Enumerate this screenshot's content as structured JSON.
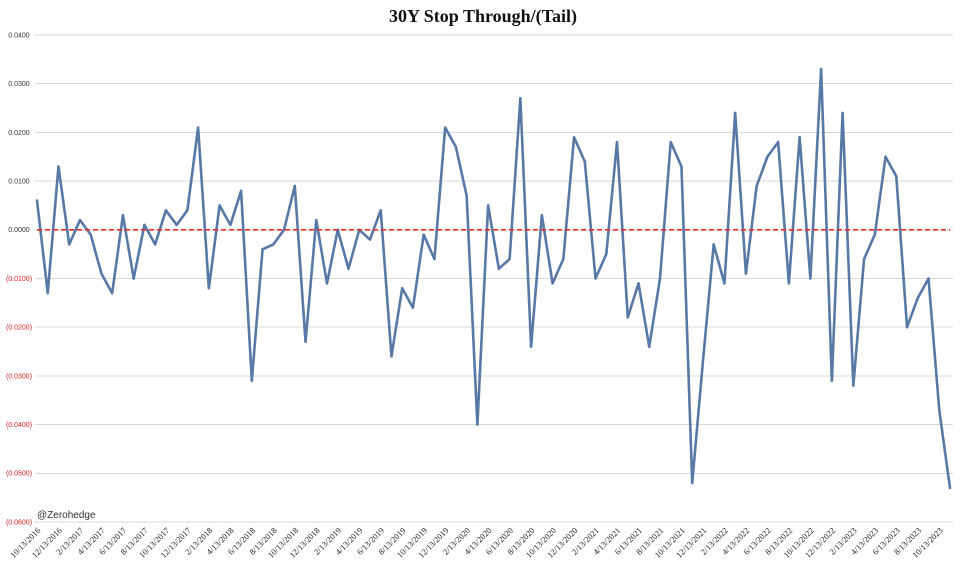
{
  "chart_data": {
    "type": "line",
    "title": "30Y Stop Through/(Tail)",
    "xlabel": "",
    "ylabel": "",
    "ylim": [
      -0.06,
      0.04
    ],
    "y_ticks": [
      0.04,
      0.03,
      0.02,
      0.01,
      0,
      -0.01,
      -0.02,
      -0.03,
      -0.04,
      -0.05,
      -0.06
    ],
    "y_tick_labels": [
      "0.0400",
      "0.0300",
      "0.0200",
      "0.0100",
      "0.0000",
      "(0.0100)",
      "(0.0200)",
      "(0.0300)",
      "(0.0400)",
      "(0.0500)",
      "(0.0600)"
    ],
    "x_tick_labels": [
      "10/13/2016",
      "12/13/2016",
      "2/13/2017",
      "4/13/2017",
      "6/13/2017",
      "8/13/2017",
      "10/13/2017",
      "12/13/2017",
      "2/13/2018",
      "4/13/2018",
      "6/13/2018",
      "8/13/2018",
      "10/13/2018",
      "12/13/2018",
      "2/13/2019",
      "4/13/2019",
      "6/13/2019",
      "8/13/2019",
      "10/13/2019",
      "12/13/2019",
      "2/13/2020",
      "4/13/2020",
      "6/13/2020",
      "8/13/2020",
      "10/13/2020",
      "12/13/2020",
      "2/13/2021",
      "4/13/2021",
      "6/13/2021",
      "8/13/2021",
      "10/13/2021",
      "12/13/2021",
      "2/13/2022",
      "4/13/2022",
      "6/13/2022",
      "8/13/2022",
      "10/13/2022",
      "12/13/2022",
      "2/13/2023",
      "4/13/2023",
      "6/13/2023",
      "8/13/2023",
      "10/13/2023"
    ],
    "x": [
      "2016-10",
      "2016-11",
      "2016-12",
      "2017-01",
      "2017-02",
      "2017-03",
      "2017-04",
      "2017-05",
      "2017-06",
      "2017-07",
      "2017-08",
      "2017-09",
      "2017-10",
      "2017-11",
      "2017-12",
      "2018-01",
      "2018-02",
      "2018-03",
      "2018-04",
      "2018-05",
      "2018-06",
      "2018-07",
      "2018-08",
      "2018-09",
      "2018-10",
      "2018-11",
      "2018-12",
      "2019-01",
      "2019-02",
      "2019-03",
      "2019-04",
      "2019-05",
      "2019-06",
      "2019-07",
      "2019-08",
      "2019-09",
      "2019-10",
      "2019-11",
      "2019-12",
      "2020-01",
      "2020-02",
      "2020-03",
      "2020-04",
      "2020-05",
      "2020-06",
      "2020-07",
      "2020-08",
      "2020-09",
      "2020-10",
      "2020-11",
      "2020-12",
      "2021-01",
      "2021-02",
      "2021-03",
      "2021-04",
      "2021-05",
      "2021-06",
      "2021-07",
      "2021-08",
      "2021-09",
      "2021-10",
      "2021-11",
      "2021-12",
      "2022-01",
      "2022-02",
      "2022-03",
      "2022-04",
      "2022-05",
      "2022-06",
      "2022-07",
      "2022-08",
      "2022-09",
      "2022-10",
      "2022-11",
      "2022-12",
      "2023-01",
      "2023-02",
      "2023-03",
      "2023-04",
      "2023-05",
      "2023-06",
      "2023-07",
      "2023-08",
      "2023-09",
      "2023-10",
      "2023-11"
    ],
    "series": [
      {
        "values": [
          0.006,
          -0.013,
          0.013,
          -0.003,
          0.002,
          -0.001,
          -0.009,
          -0.013,
          0.003,
          -0.01,
          0.001,
          -0.003,
          0.004,
          0.001,
          0.004,
          0.021,
          -0.012,
          0.005,
          0.001,
          0.008,
          -0.031,
          -0.004,
          -0.003,
          0.0,
          0.009,
          -0.023,
          0.002,
          -0.011,
          0.0,
          -0.008,
          0.0,
          -0.002,
          0.004,
          -0.026,
          -0.012,
          -0.016,
          -0.001,
          -0.006,
          0.021,
          0.017,
          0.007,
          -0.04,
          0.005,
          -0.008,
          -0.006,
          0.027,
          -0.024,
          0.003,
          -0.011,
          -0.006,
          0.019,
          0.014,
          -0.01,
          -0.005,
          0.018,
          -0.018,
          -0.011,
          -0.024,
          -0.01,
          0.018,
          0.013,
          -0.052,
          -0.027,
          -0.003,
          -0.011,
          0.024,
          -0.009,
          0.009,
          0.015,
          0.018,
          -0.011,
          0.019,
          -0.01,
          0.033,
          -0.031,
          0.024,
          -0.032,
          -0.006,
          -0.001,
          0.015,
          0.011,
          -0.02,
          -0.014,
          -0.01,
          -0.037,
          -0.053
        ]
      }
    ],
    "reference_lines": [
      {
        "y": 0,
        "style": "dashed",
        "color": "#e0302a"
      }
    ],
    "grid": true,
    "legend": "none",
    "colors": {
      "series": "#5878a5",
      "grid": "#d9d9d9",
      "positive_tick_label": "#333333",
      "negative_tick_label": "#d42020"
    }
  },
  "watermark": "@Zerohedge"
}
